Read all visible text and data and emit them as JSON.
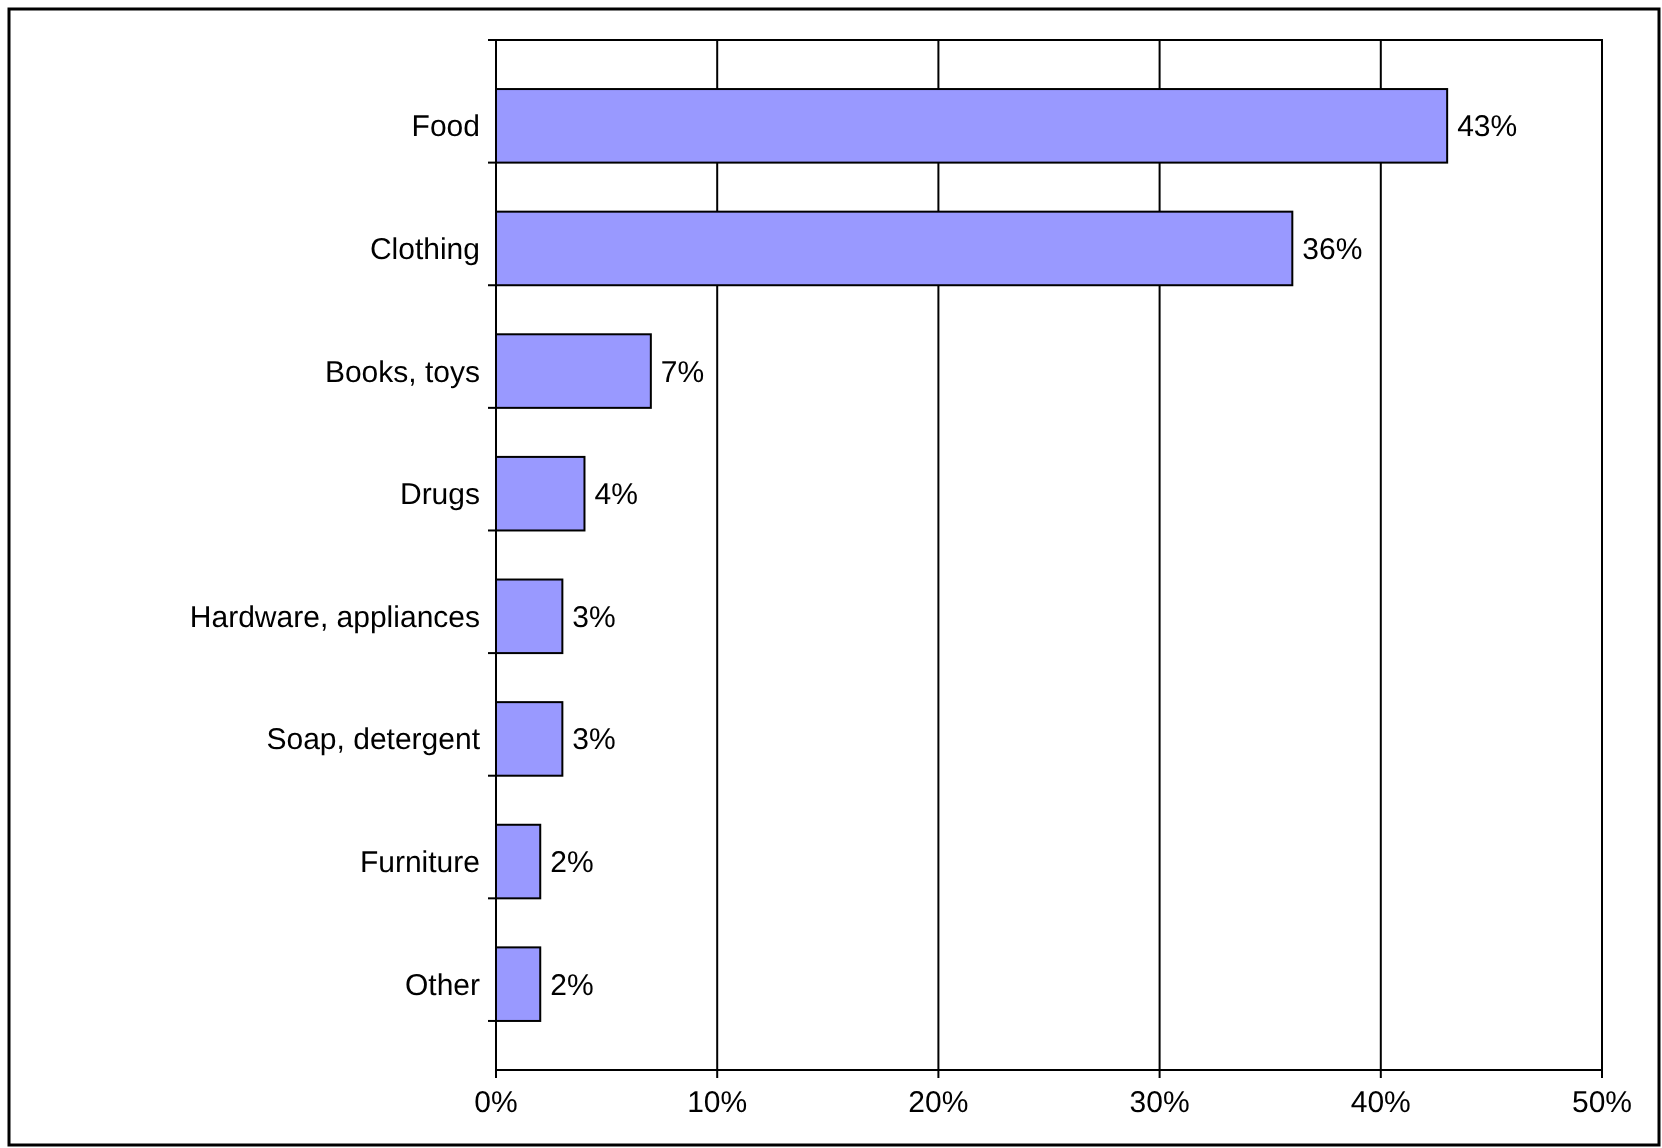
{
  "chart_data": {
    "type": "bar",
    "orientation": "horizontal",
    "categories": [
      "Food",
      "Clothing",
      "Books, toys",
      "Drugs",
      "Hardware, appliances",
      "Soap, detergent",
      "Furniture",
      "Other"
    ],
    "values": [
      43,
      36,
      7,
      4,
      3,
      3,
      2,
      2
    ],
    "value_labels": [
      "43%",
      "36%",
      "7%",
      "4%",
      "3%",
      "3%",
      "2%",
      "2%"
    ],
    "color": "#9999ff",
    "xlim": [
      0,
      50
    ],
    "xticks": [
      {
        "value": 0,
        "label": "0%"
      },
      {
        "value": 10,
        "label": "10%"
      },
      {
        "value": 20,
        "label": "20%"
      },
      {
        "value": 30,
        "label": "30%"
      },
      {
        "value": 40,
        "label": "40%"
      },
      {
        "value": 50,
        "label": "50%"
      }
    ],
    "grid": "x"
  }
}
